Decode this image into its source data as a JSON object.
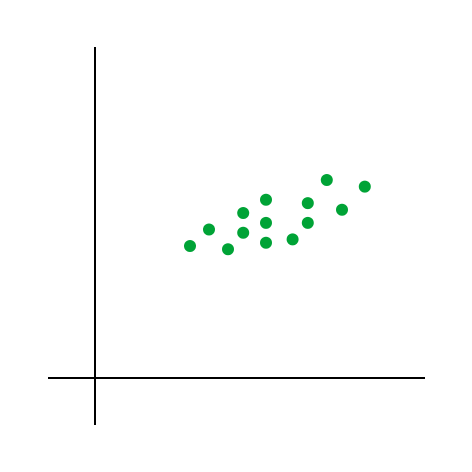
{
  "chart_data": {
    "type": "scatter",
    "title": "",
    "xlabel": "",
    "ylabel": "",
    "grid": false,
    "legend": false,
    "xlim": [
      0,
      10
    ],
    "ylim": [
      0,
      10
    ],
    "axes_color": "#000000",
    "point_color": "#00a336",
    "series": [
      {
        "points": [
          {
            "x": 2.5,
            "y": 4.0
          },
          {
            "x": 3.0,
            "y": 4.5
          },
          {
            "x": 3.5,
            "y": 3.9
          },
          {
            "x": 3.9,
            "y": 5.0
          },
          {
            "x": 3.9,
            "y": 4.4
          },
          {
            "x": 4.5,
            "y": 5.4
          },
          {
            "x": 4.5,
            "y": 4.7
          },
          {
            "x": 4.5,
            "y": 4.1
          },
          {
            "x": 5.2,
            "y": 4.2
          },
          {
            "x": 5.6,
            "y": 5.3
          },
          {
            "x": 5.6,
            "y": 4.7
          },
          {
            "x": 6.1,
            "y": 6.0
          },
          {
            "x": 6.5,
            "y": 5.1
          },
          {
            "x": 7.1,
            "y": 5.8
          }
        ]
      }
    ]
  }
}
